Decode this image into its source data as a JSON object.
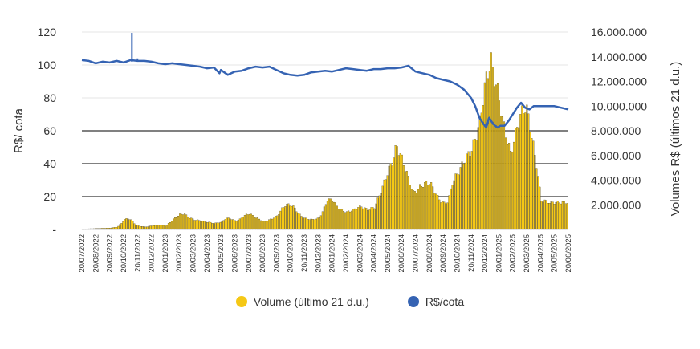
{
  "chart_data": {
    "type": "bar+line",
    "title": "",
    "ylabel_left": "R$/ cota",
    "ylabel_right": "Volumes R$ (últimos 21 d.u.)",
    "left_axis": {
      "min": 0,
      "max": 120,
      "ticks": [
        "-",
        "20",
        "40",
        "60",
        "80",
        "100",
        "120"
      ]
    },
    "right_axis": {
      "min": 0,
      "max": 16000000,
      "ticks": [
        "2.000.000",
        "4.000.000",
        "6.000.000",
        "8.000.000",
        "10.000.000",
        "12.000.000",
        "14.000.000",
        "16.000.000"
      ]
    },
    "gridlines_left": [
      20,
      40,
      60
    ],
    "x_tick_labels": [
      "20/07/2022",
      "20/08/2022",
      "20/09/2022",
      "20/10/2022",
      "20/11/2022",
      "20/12/2022",
      "20/01/2023",
      "20/02/2023",
      "20/03/2023",
      "20/04/2023",
      "20/05/2023",
      "20/06/2023",
      "20/07/2023",
      "20/08/2023",
      "20/09/2023",
      "20/10/2023",
      "20/11/2023",
      "20/12/2023",
      "20/01/2024",
      "20/02/2024",
      "20/03/2024",
      "20/04/2024",
      "20/05/2024",
      "20/06/2024",
      "20/07/2024",
      "20/08/2024",
      "20/09/2024",
      "20/10/2024",
      "20/11/2024",
      "20/12/2024",
      "20/01/2025",
      "20/02/2025",
      "20/03/2025",
      "20/04/2025",
      "20/05/2025",
      "20/06/2025"
    ],
    "series": [
      {
        "name": "Volume (último 21 d.u.)",
        "axis": "right",
        "color": "#F5C816",
        "points": [
          [
            0,
            0.05
          ],
          [
            0.5,
            0.06
          ],
          [
            1,
            0.08
          ],
          [
            1.5,
            0.1
          ],
          [
            2,
            0.12
          ],
          [
            2.5,
            0.2
          ],
          [
            2.8,
            0.5
          ],
          [
            3,
            0.8
          ],
          [
            3.3,
            0.9
          ],
          [
            3.6,
            0.7
          ],
          [
            3.8,
            0.4
          ],
          [
            4,
            0.3
          ],
          [
            4.5,
            0.2
          ],
          [
            5,
            0.3
          ],
          [
            5.5,
            0.4
          ],
          [
            6,
            0.3
          ],
          [
            6.3,
            0.6
          ],
          [
            6.6,
            0.9
          ],
          [
            7,
            1.2
          ],
          [
            7.3,
            1.3
          ],
          [
            7.6,
            1.0
          ],
          [
            8,
            0.8
          ],
          [
            8.5,
            0.7
          ],
          [
            9,
            0.6
          ],
          [
            9.5,
            0.5
          ],
          [
            10,
            0.6
          ],
          [
            10.3,
            0.9
          ],
          [
            10.6,
            0.9
          ],
          [
            11,
            0.7
          ],
          [
            11.3,
            0.8
          ],
          [
            11.6,
            1.1
          ],
          [
            12,
            1.3
          ],
          [
            12.4,
            1.0
          ],
          [
            12.8,
            0.8
          ],
          [
            13,
            0.6
          ],
          [
            13.5,
            0.8
          ],
          [
            14,
            1.1
          ],
          [
            14.3,
            1.6
          ],
          [
            14.6,
            2.0
          ],
          [
            15,
            2.0
          ],
          [
            15.3,
            1.7
          ],
          [
            15.6,
            1.2
          ],
          [
            16,
            0.9
          ],
          [
            16.5,
            0.8
          ],
          [
            17,
            0.9
          ],
          [
            17.3,
            1.5
          ],
          [
            17.6,
            2.4
          ],
          [
            18,
            2.4
          ],
          [
            18.3,
            1.9
          ],
          [
            18.6,
            1.6
          ],
          [
            19,
            1.4
          ],
          [
            19.5,
            1.6
          ],
          [
            20,
            1.9
          ],
          [
            20.5,
            1.6
          ],
          [
            21,
            1.8
          ],
          [
            21.3,
            2.6
          ],
          [
            21.6,
            3.5
          ],
          [
            22,
            4.8
          ],
          [
            22.3,
            5.5
          ],
          [
            22.6,
            6.8
          ],
          [
            22.9,
            6.0
          ],
          [
            23.2,
            5.0
          ],
          [
            23.5,
            4.0
          ],
          [
            23.8,
            3.0
          ],
          [
            24,
            3.1
          ],
          [
            24.3,
            3.5
          ],
          [
            24.6,
            3.7
          ],
          [
            25,
            3.8
          ],
          [
            25.3,
            3.2
          ],
          [
            25.6,
            2.5
          ],
          [
            26,
            2.1
          ],
          [
            26.3,
            2.3
          ],
          [
            26.6,
            3.8
          ],
          [
            27,
            4.6
          ],
          [
            27.3,
            5.2
          ],
          [
            27.6,
            5.8
          ],
          [
            28,
            6.5
          ],
          [
            28.3,
            7.5
          ],
          [
            28.6,
            8.8
          ],
          [
            28.8,
            10.5
          ],
          [
            29,
            12.0
          ],
          [
            29.2,
            13.0
          ],
          [
            29.4,
            13.6
          ],
          [
            29.6,
            12.5
          ],
          [
            29.8,
            11.5
          ],
          [
            30,
            10.5
          ],
          [
            30.2,
            9.0
          ],
          [
            30.4,
            8.0
          ],
          [
            30.6,
            7.0
          ],
          [
            30.8,
            6.2
          ],
          [
            31,
            7.0
          ],
          [
            31.3,
            8.5
          ],
          [
            31.6,
            9.5
          ],
          [
            31.9,
            10.0
          ],
          [
            32.1,
            9.0
          ],
          [
            32.4,
            7.0
          ],
          [
            32.7,
            5.0
          ],
          [
            33,
            2.4
          ],
          [
            33.3,
            2.3
          ],
          [
            33.6,
            2.2
          ],
          [
            34,
            2.2
          ],
          [
            34.5,
            2.2
          ],
          [
            35,
            2.2
          ]
        ]
      },
      {
        "name": "R$/cota",
        "axis": "left",
        "color": "#3563B3",
        "points": [
          [
            0,
            103
          ],
          [
            0.5,
            102.5
          ],
          [
            1,
            101
          ],
          [
            1.5,
            102
          ],
          [
            2,
            101.5
          ],
          [
            2.5,
            102.5
          ],
          [
            3,
            101.5
          ],
          [
            3.5,
            103
          ],
          [
            4,
            102.5
          ],
          [
            4.5,
            102.5
          ],
          [
            5,
            102
          ],
          [
            5.5,
            101
          ],
          [
            6,
            100.5
          ],
          [
            6.5,
            101
          ],
          [
            7,
            100.5
          ],
          [
            7.5,
            100
          ],
          [
            8,
            99.5
          ],
          [
            8.5,
            99
          ],
          [
            9,
            98
          ],
          [
            9.5,
            98.5
          ],
          [
            9.9,
            95
          ],
          [
            10,
            97
          ],
          [
            10.5,
            94
          ],
          [
            11,
            96
          ],
          [
            11.5,
            96.5
          ],
          [
            12,
            98
          ],
          [
            12.5,
            99
          ],
          [
            13,
            98.5
          ],
          [
            13.5,
            99
          ],
          [
            14,
            97
          ],
          [
            14.5,
            95
          ],
          [
            15,
            94
          ],
          [
            15.5,
            93.5
          ],
          [
            16,
            94
          ],
          [
            16.5,
            95.5
          ],
          [
            17,
            96
          ],
          [
            17.5,
            96.5
          ],
          [
            18,
            96
          ],
          [
            18.5,
            97
          ],
          [
            19,
            98
          ],
          [
            19.5,
            97.5
          ],
          [
            20,
            97
          ],
          [
            20.5,
            96.5
          ],
          [
            21,
            97.5
          ],
          [
            21.5,
            97.5
          ],
          [
            22,
            98
          ],
          [
            22.5,
            98
          ],
          [
            23,
            98.5
          ],
          [
            23.5,
            99.5
          ],
          [
            24,
            96
          ],
          [
            24.5,
            95
          ],
          [
            25,
            94
          ],
          [
            25.5,
            92
          ],
          [
            26,
            91
          ],
          [
            26.5,
            90
          ],
          [
            27,
            88
          ],
          [
            27.5,
            85
          ],
          [
            28,
            80
          ],
          [
            28.3,
            75
          ],
          [
            28.6,
            68
          ],
          [
            28.9,
            64
          ],
          [
            29.1,
            62
          ],
          [
            29.3,
            68
          ],
          [
            29.6,
            64
          ],
          [
            29.9,
            62
          ],
          [
            30.1,
            63
          ],
          [
            30.4,
            63
          ],
          [
            30.7,
            66
          ],
          [
            31,
            70
          ],
          [
            31.3,
            74
          ],
          [
            31.6,
            77
          ],
          [
            31.9,
            74
          ],
          [
            32.2,
            73
          ],
          [
            32.5,
            75
          ],
          [
            33,
            75
          ],
          [
            33.5,
            75
          ],
          [
            34,
            75
          ],
          [
            34.5,
            74
          ],
          [
            35,
            73
          ]
        ]
      }
    ],
    "spikes_left": [
      [
        3.6,
        119.5
      ],
      [
        4.0,
        104
      ]
    ],
    "legend_position": "bottom",
    "grid": true
  }
}
